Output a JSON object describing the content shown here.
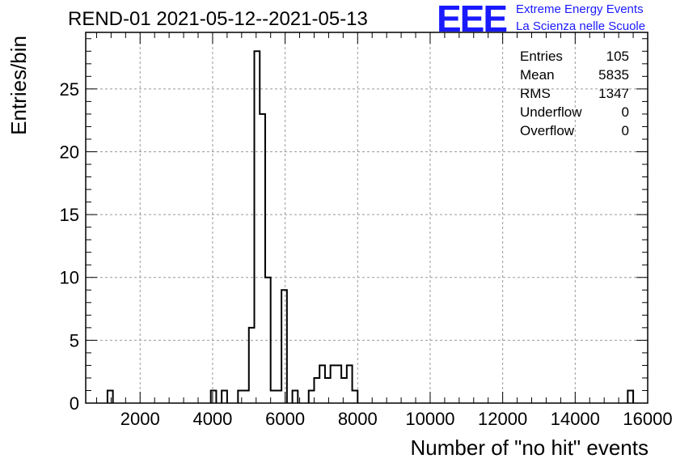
{
  "header": {
    "title": "REND-01 2021-05-12--2021-05-13",
    "logo_text": "EEE",
    "logo_line1": "Extreme Energy Events",
    "logo_line2": "La Scienza nelle Scuole"
  },
  "stats": [
    {
      "name": "Entries",
      "value": "105"
    },
    {
      "name": "Mean",
      "value": "5835"
    },
    {
      "name": "RMS",
      "value": "1347"
    },
    {
      "name": "Underflow",
      "value": "0"
    },
    {
      "name": "Overflow",
      "value": "0"
    }
  ],
  "chart_data": {
    "type": "bar",
    "histogram": true,
    "xlabel": "Number of \"no hit\" events",
    "ylabel": "Entries/bin",
    "xlim": [
      500,
      16000
    ],
    "ylim": [
      0,
      29.5
    ],
    "xticks": [
      2000,
      4000,
      6000,
      8000,
      10000,
      12000,
      14000,
      16000
    ],
    "yticks": [
      0,
      5,
      10,
      15,
      20,
      25
    ],
    "grid": true,
    "line_color": "#000000",
    "bins": [
      {
        "x0": 1100,
        "x1": 1250,
        "count": 1
      },
      {
        "x0": 3950,
        "x1": 4100,
        "count": 1
      },
      {
        "x0": 4250,
        "x1": 4400,
        "count": 1
      },
      {
        "x0": 4700,
        "x1": 4850,
        "count": 1
      },
      {
        "x0": 4850,
        "x1": 5000,
        "count": 1
      },
      {
        "x0": 5000,
        "x1": 5150,
        "count": 6
      },
      {
        "x0": 5150,
        "x1": 5300,
        "count": 28
      },
      {
        "x0": 5300,
        "x1": 5450,
        "count": 23
      },
      {
        "x0": 5450,
        "x1": 5600,
        "count": 10
      },
      {
        "x0": 5600,
        "x1": 5750,
        "count": 1
      },
      {
        "x0": 5750,
        "x1": 5900,
        "count": 1
      },
      {
        "x0": 5900,
        "x1": 6050,
        "count": 9
      },
      {
        "x0": 6200,
        "x1": 6350,
        "count": 1
      },
      {
        "x0": 6650,
        "x1": 6800,
        "count": 1
      },
      {
        "x0": 6800,
        "x1": 6950,
        "count": 2
      },
      {
        "x0": 6950,
        "x1": 7100,
        "count": 3
      },
      {
        "x0": 7100,
        "x1": 7250,
        "count": 2
      },
      {
        "x0": 7250,
        "x1": 7400,
        "count": 3
      },
      {
        "x0": 7400,
        "x1": 7550,
        "count": 3
      },
      {
        "x0": 7550,
        "x1": 7700,
        "count": 2
      },
      {
        "x0": 7700,
        "x1": 7850,
        "count": 3
      },
      {
        "x0": 7850,
        "x1": 8000,
        "count": 1
      },
      {
        "x0": 15450,
        "x1": 15600,
        "count": 1
      }
    ]
  }
}
